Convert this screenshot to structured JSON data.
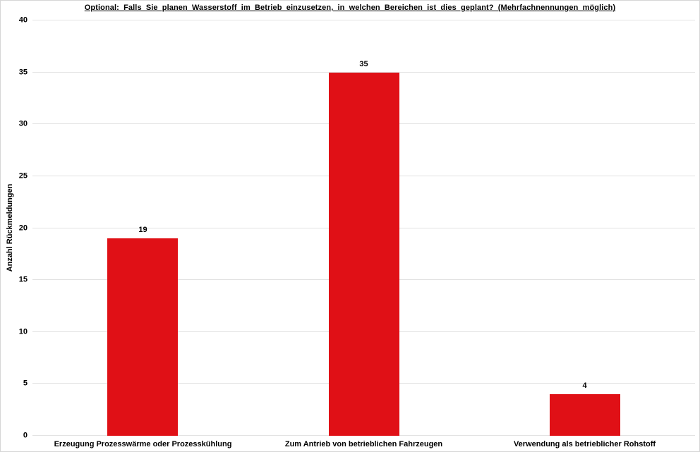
{
  "chart_data": {
    "type": "bar",
    "title": "Optional: Falls Sie planen Wasserstoff im Betrieb einzusetzen, in welchen Bereichen ist dies geplant? (Mehrfachnennungen möglich)",
    "categories": [
      "Erzeugung Prozesswärme oder Prozesskühlung",
      "Zum Antrieb von betrieblichen Fahrzeugen",
      "Verwendung als betrieblicher Rohstoff"
    ],
    "values": [
      19,
      35,
      4
    ],
    "xlabel": "",
    "ylabel": "Anzahl Rückmeldungen",
    "ylim": [
      0,
      40
    ],
    "ytick_interval": 5,
    "ytick_labels": [
      "0",
      "5",
      "10",
      "15",
      "20",
      "25",
      "30",
      "35",
      "40"
    ],
    "data_labels": true,
    "grid": "horizontal",
    "legend": "none",
    "colors": {
      "bar": "#e01016",
      "gridline": "#e2e2e2",
      "background": "#ffffff",
      "border": "#d6d6d6",
      "text": "#000000"
    }
  }
}
